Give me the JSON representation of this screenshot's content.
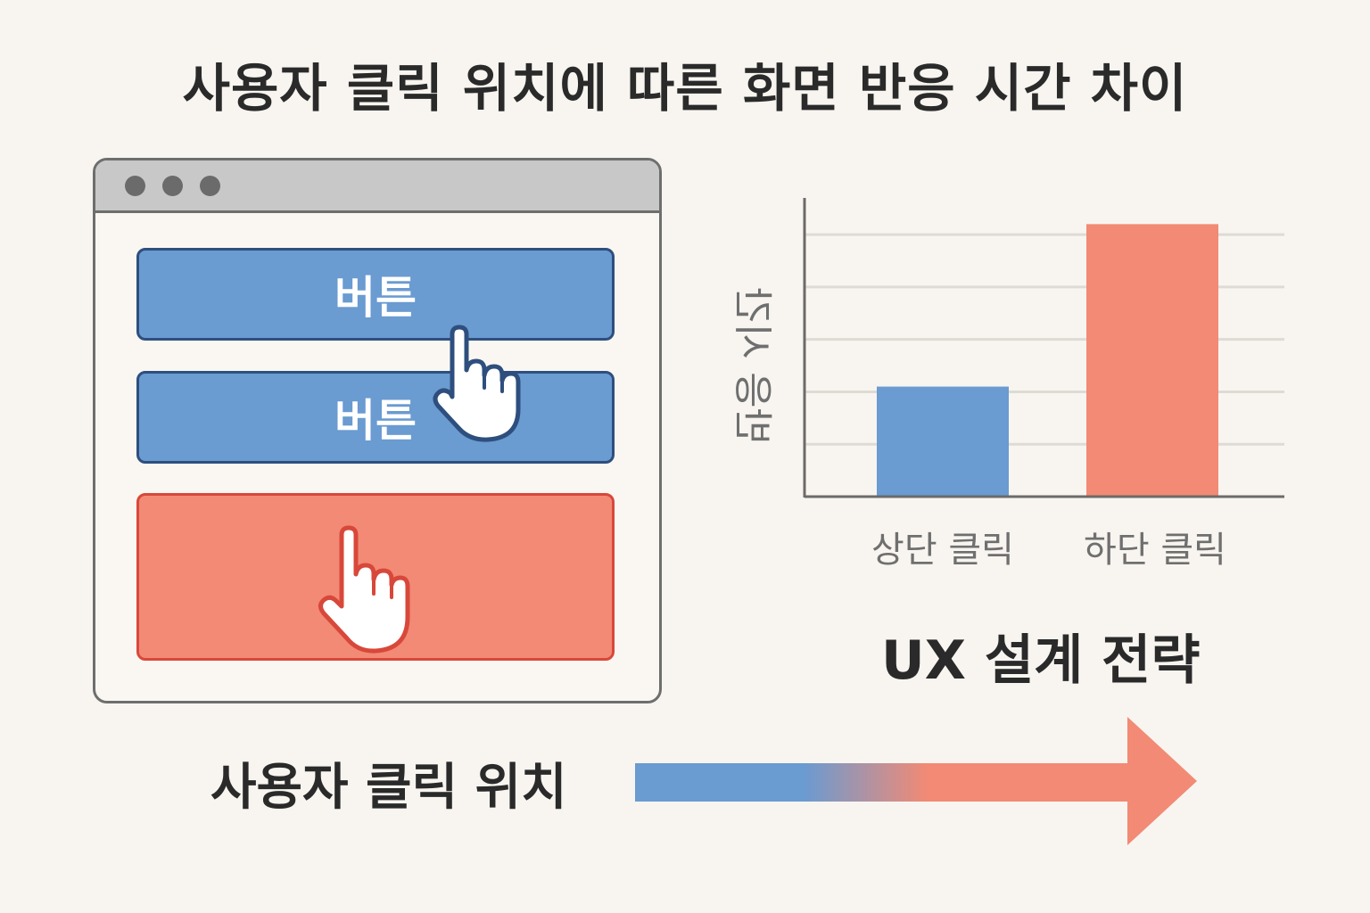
{
  "title": "사용자 클릭 위치에 따른 화면 반응 시간 차이",
  "mockup": {
    "buttons": [
      {
        "label": "버튼",
        "color": "#6a9bd1"
      },
      {
        "label": "버튼",
        "color": "#6a9bd1"
      },
      {
        "label": "",
        "color": "#f28a75"
      }
    ],
    "pointer_icon": "hand-pointer-icon"
  },
  "location_label": "사용자 클릭 위치",
  "strategy_title": "UX 설계 전략",
  "arrow": {
    "from_color": "#6a9bd1",
    "to_color": "#f28a75"
  },
  "chart_data": {
    "type": "bar",
    "ylabel": "반응 시간",
    "xlabel": "",
    "categories": [
      "상단 클릭",
      "하단 클릭"
    ],
    "values": [
      2.1,
      5.2
    ],
    "ylim": [
      0,
      5.7
    ],
    "grid": true,
    "gridlines": [
      1,
      2,
      3,
      4,
      5
    ],
    "colors": [
      "#6a9bd1",
      "#f28a75"
    ]
  }
}
